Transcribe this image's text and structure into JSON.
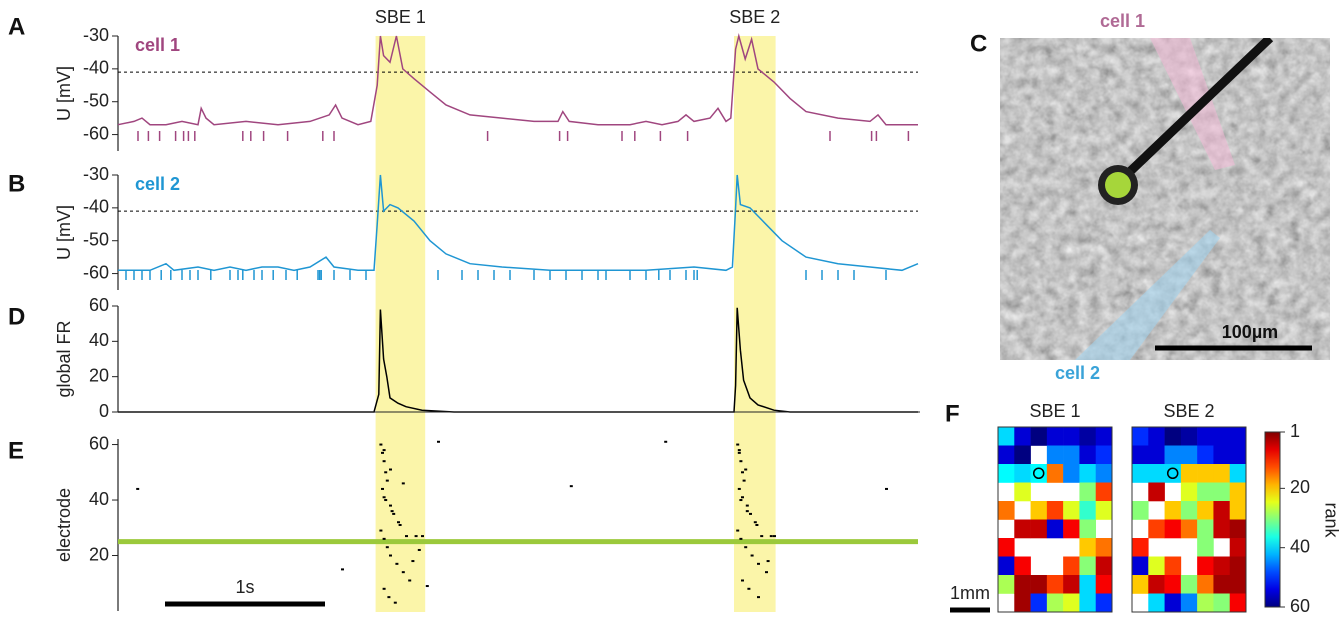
{
  "panel_labels": [
    "A",
    "B",
    "C",
    "D",
    "E",
    "F"
  ],
  "xlim": [
    0,
    5
  ],
  "events": [
    {
      "label": "SBE 1",
      "start": 1.61,
      "end": 1.92
    },
    {
      "label": "SBE 2",
      "start": 3.85,
      "end": 4.11
    }
  ],
  "event_color": "#fbf5a9",
  "photo": {
    "cell1": "cell 1",
    "cell2": "cell 2",
    "scalebar": "100µm"
  },
  "heatmap_scale": {
    "label": "rank",
    "lim": [
      1,
      60
    ],
    "ticks": [
      1,
      20,
      40,
      60
    ],
    "scalebar": "1mm"
  },
  "chart_data": [
    {
      "type": "line",
      "label": "cell 1",
      "ylabel": "U [mV]",
      "color": "#a0467f",
      "ylim": [
        -65,
        -30
      ],
      "yticks": [
        -30,
        -40,
        -50,
        -60
      ],
      "threshold": -41,
      "x": [
        0,
        0.1,
        0.15,
        0.2,
        0.3,
        0.4,
        0.5,
        0.52,
        0.55,
        0.6,
        0.8,
        1.0,
        1.2,
        1.32,
        1.36,
        1.4,
        1.5,
        1.58,
        1.62,
        1.64,
        1.66,
        1.7,
        1.74,
        1.78,
        1.85,
        1.95,
        2.05,
        2.2,
        2.4,
        2.6,
        2.75,
        2.78,
        2.82,
        3.0,
        3.2,
        3.3,
        3.4,
        3.5,
        3.55,
        3.6,
        3.7,
        3.75,
        3.8,
        3.83,
        3.86,
        3.88,
        3.92,
        3.96,
        4.0,
        4.1,
        4.2,
        4.3,
        4.5,
        4.7,
        4.75,
        4.8,
        5.0
      ],
      "values": [
        -57,
        -56,
        -55,
        -57,
        -57,
        -56,
        -57,
        -52,
        -55,
        -57,
        -56,
        -57,
        -56,
        -54,
        -51,
        -55,
        -57,
        -56,
        -45,
        -30,
        -36,
        -38,
        -30,
        -40,
        -43,
        -47,
        -51,
        -54,
        -55,
        -56,
        -56,
        -53,
        -56,
        -57,
        -57,
        -56,
        -57,
        -56,
        -54,
        -56,
        -55,
        -52,
        -56,
        -55,
        -34,
        -30,
        -37,
        -31,
        -40,
        -44,
        -49,
        -53,
        -55,
        -56,
        -54,
        -57,
        -57
      ],
      "spike_times": [
        0.125,
        0.19,
        0.26,
        0.36,
        0.41,
        0.44,
        0.48,
        0.78,
        0.83,
        0.91,
        1.06,
        1.28,
        1.35,
        2.31,
        2.76,
        2.81,
        3.15,
        3.23,
        3.39,
        3.56,
        4.45,
        4.71,
        4.74,
        4.94
      ]
    },
    {
      "type": "line",
      "label": "cell 2",
      "ylabel": "U [mV]",
      "color": "#1f96d3",
      "ylim": [
        -65,
        -30
      ],
      "yticks": [
        -30,
        -40,
        -50,
        -60
      ],
      "threshold": -41,
      "x": [
        0,
        0.2,
        0.3,
        0.35,
        0.5,
        0.6,
        0.7,
        0.8,
        0.9,
        1.0,
        1.1,
        1.2,
        1.3,
        1.35,
        1.5,
        1.6,
        1.62,
        1.64,
        1.66,
        1.7,
        1.75,
        1.85,
        1.95,
        2.05,
        2.2,
        2.4,
        2.7,
        3.0,
        3.3,
        3.6,
        3.8,
        3.84,
        3.86,
        3.87,
        3.89,
        3.95,
        4.05,
        4.15,
        4.3,
        4.5,
        4.7,
        4.9,
        5.0
      ],
      "values": [
        -59,
        -59,
        -57,
        -59,
        -58,
        -59,
        -58,
        -59,
        -58,
        -58,
        -59,
        -58,
        -55,
        -58,
        -59,
        -59,
        -45,
        -30,
        -41,
        -39,
        -40,
        -44,
        -50,
        -54,
        -57,
        -58,
        -59,
        -59,
        -59,
        -58,
        -59,
        -58,
        -40,
        -30,
        -39,
        -40,
        -45,
        -50,
        -55,
        -57,
        -58,
        -59,
        -57
      ],
      "spike_times": [
        0.05,
        0.1,
        0.15,
        0.2,
        0.27,
        0.33,
        0.4,
        0.45,
        0.5,
        0.58,
        0.7,
        0.75,
        0.78,
        0.85,
        0.9,
        0.97,
        1.05,
        1.12,
        1.25,
        1.26,
        1.27,
        1.35,
        1.45,
        1.55,
        2.0,
        2.15,
        2.25,
        2.35,
        2.45,
        2.6,
        2.7,
        2.8,
        2.9,
        3.0,
        3.05,
        3.2,
        3.3,
        3.38,
        3.45,
        3.55,
        3.6,
        3.62,
        4.3,
        4.4,
        4.5,
        4.6,
        4.8
      ]
    },
    {
      "type": "line",
      "ylabel": "global FR",
      "color": "#000000",
      "ylim": [
        0,
        60
      ],
      "yticks": [
        0,
        20,
        40,
        60
      ],
      "x": [
        0,
        1.6,
        1.63,
        1.64,
        1.66,
        1.68,
        1.7,
        1.75,
        1.8,
        1.9,
        2.0,
        2.1,
        3.85,
        3.86,
        3.87,
        3.89,
        3.91,
        3.95,
        4.0,
        4.1,
        4.2,
        5.0
      ],
      "values": [
        0,
        0,
        10,
        58,
        30,
        20,
        8,
        5,
        3,
        1,
        0.5,
        0,
        0,
        15,
        59,
        35,
        18,
        8,
        4,
        1,
        0,
        0
      ]
    },
    {
      "type": "scatter",
      "ylabel": "electrode",
      "color": "#000000",
      "ylim": [
        0,
        62
      ],
      "yticks": [
        20,
        40,
        60
      ],
      "highlight": 25,
      "highlight_color": "#9bc93b",
      "scalebar": {
        "value": 1,
        "label": "1s"
      },
      "x": [
        0.12,
        1.4,
        2.0,
        2.83,
        3.42,
        4.8,
        1.64,
        1.65,
        1.66,
        1.67,
        1.68,
        1.65,
        1.66,
        1.7,
        1.72,
        1.75,
        1.64,
        1.66,
        1.68,
        1.7,
        1.74,
        1.78,
        1.82,
        1.66,
        1.69,
        1.73,
        1.8,
        1.86,
        1.9,
        1.67,
        1.71,
        1.76,
        1.84,
        1.66,
        1.7,
        1.78,
        1.88,
        1.93,
        3.87,
        3.88,
        3.89,
        3.9,
        3.91,
        3.88,
        3.9,
        3.93,
        3.95,
        3.98,
        3.87,
        3.89,
        3.92,
        3.96,
        4.0,
        4.05,
        3.9,
        3.94,
        4.02,
        4.08,
        4.1,
        3.89,
        3.93,
        3.99,
        4.06,
        3.88,
        3.92,
        4.0
      ],
      "values": [
        44,
        15,
        61,
        45,
        61,
        44,
        60,
        57,
        54,
        50,
        47,
        44,
        41,
        38,
        35,
        32,
        29,
        26,
        23,
        20,
        17,
        14,
        11,
        8,
        5,
        3,
        27,
        27,
        27,
        40,
        36,
        31,
        18,
        58,
        51,
        46,
        22,
        9,
        60,
        57,
        54,
        50,
        47,
        44,
        41,
        38,
        35,
        32,
        29,
        26,
        23,
        20,
        17,
        14,
        11,
        8,
        27,
        27,
        27,
        40,
        36,
        31,
        18,
        58,
        51,
        5
      ]
    },
    {
      "type": "heatmap",
      "title": "SBE 1",
      "marker": [
        2,
        2
      ],
      "values": [
        [
          40,
          55,
          60,
          55,
          55,
          58,
          55
        ],
        [
          55,
          60,
          null,
          45,
          45,
          55,
          50
        ],
        [
          38,
          40,
          38,
          15,
          45,
          40,
          45
        ],
        [
          null,
          25,
          null,
          null,
          null,
          30,
          12
        ],
        [
          15,
          null,
          20,
          12,
          25,
          35,
          25
        ],
        [
          null,
          5,
          5,
          55,
          8,
          30,
          null
        ],
        [
          8,
          null,
          null,
          null,
          null,
          20,
          15
        ],
        [
          55,
          8,
          null,
          null,
          12,
          30,
          5
        ],
        [
          28,
          3,
          3,
          12,
          5,
          40,
          8
        ],
        [
          null,
          3,
          50,
          28,
          25,
          40,
          50
        ]
      ]
    },
    {
      "type": "heatmap",
      "title": "SBE 2",
      "marker": [
        2,
        2
      ],
      "values": [
        [
          50,
          55,
          60,
          58,
          55,
          55,
          55
        ],
        [
          55,
          55,
          45,
          45,
          50,
          55,
          55
        ],
        [
          40,
          40,
          40,
          20,
          20,
          20,
          40
        ],
        [
          null,
          5,
          null,
          25,
          30,
          30,
          20
        ],
        [
          30,
          null,
          20,
          30,
          20,
          5,
          20
        ],
        [
          null,
          12,
          8,
          15,
          30,
          5,
          3
        ],
        [
          10,
          null,
          null,
          null,
          30,
          null,
          5
        ],
        [
          55,
          25,
          12,
          null,
          8,
          5,
          3
        ],
        [
          20,
          5,
          8,
          30,
          15,
          3,
          3
        ],
        [
          null,
          40,
          55,
          45,
          28,
          30,
          8
        ]
      ]
    }
  ]
}
